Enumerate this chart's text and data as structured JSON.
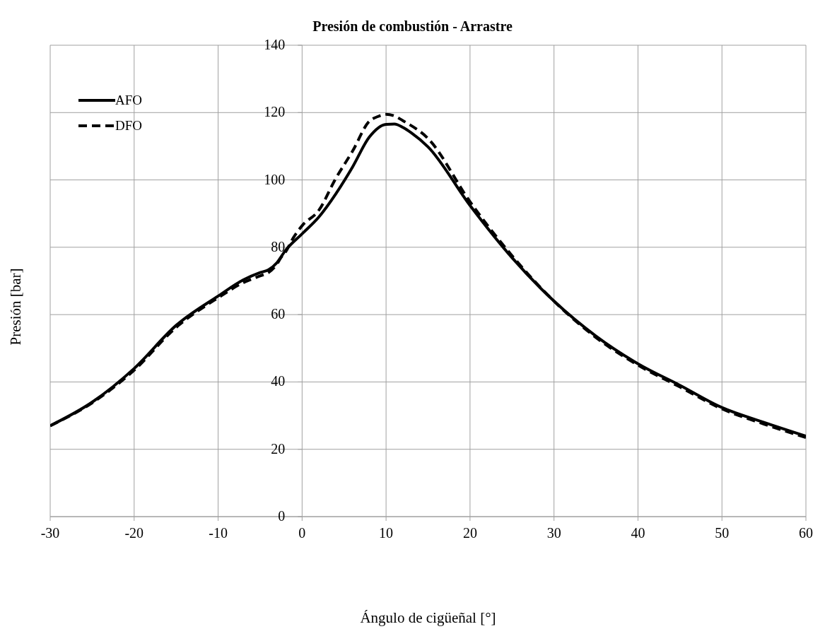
{
  "chart_data": {
    "type": "line",
    "title": "Presión de combustión - Arrastre",
    "xlabel": "Ángulo de cigüeñal [°]",
    "ylabel": "Presión [bar]",
    "xlim": [
      -30,
      60
    ],
    "xticks": [
      -30,
      -20,
      -10,
      0,
      10,
      20,
      30,
      40,
      50,
      60
    ],
    "ylim": [
      0,
      140
    ],
    "yticks": [
      0,
      20,
      40,
      60,
      80,
      100,
      120,
      140
    ],
    "grid": true,
    "legend": "top left",
    "series": [
      {
        "name": "AFO",
        "color": "#000000",
        "line_style": "solid",
        "x": [
          -30,
          -25,
          -20,
          -15,
          -10,
          -7,
          -5,
          -4,
          -3,
          -2,
          0,
          2,
          4,
          6,
          8,
          10,
          11,
          12,
          13,
          15,
          20,
          25,
          30,
          35,
          40,
          45,
          50,
          55,
          60
        ],
        "values": [
          27,
          34,
          44,
          56.8,
          65.5,
          70.3,
          72.5,
          73.3,
          75.4,
          79,
          84,
          89,
          95.8,
          103.8,
          112.7,
          116.5,
          116.6,
          115.6,
          114,
          109.8,
          92.4,
          76.9,
          64,
          53.6,
          45.4,
          39,
          32.4,
          28,
          23.9
        ]
      },
      {
        "name": "DFO",
        "color": "#000000",
        "line_style": "dashed",
        "x": [
          -30,
          -25,
          -20,
          -15,
          -10,
          -7,
          -5,
          -4,
          -3,
          -2.5,
          -2,
          -1,
          0,
          2,
          4,
          6,
          8,
          9,
          10,
          11,
          12,
          15,
          20,
          25,
          30,
          35,
          40,
          45,
          50,
          55,
          60
        ],
        "values": [
          27,
          33.8,
          43.5,
          56.2,
          65,
          69.5,
          71.5,
          72.5,
          75,
          77,
          78.5,
          83,
          86.4,
          91,
          100.4,
          108.5,
          117.4,
          118.8,
          119.5,
          119,
          117.6,
          112.3,
          93.5,
          77.5,
          64,
          53.2,
          45,
          38.5,
          32,
          27.5,
          23.5
        ]
      }
    ]
  }
}
